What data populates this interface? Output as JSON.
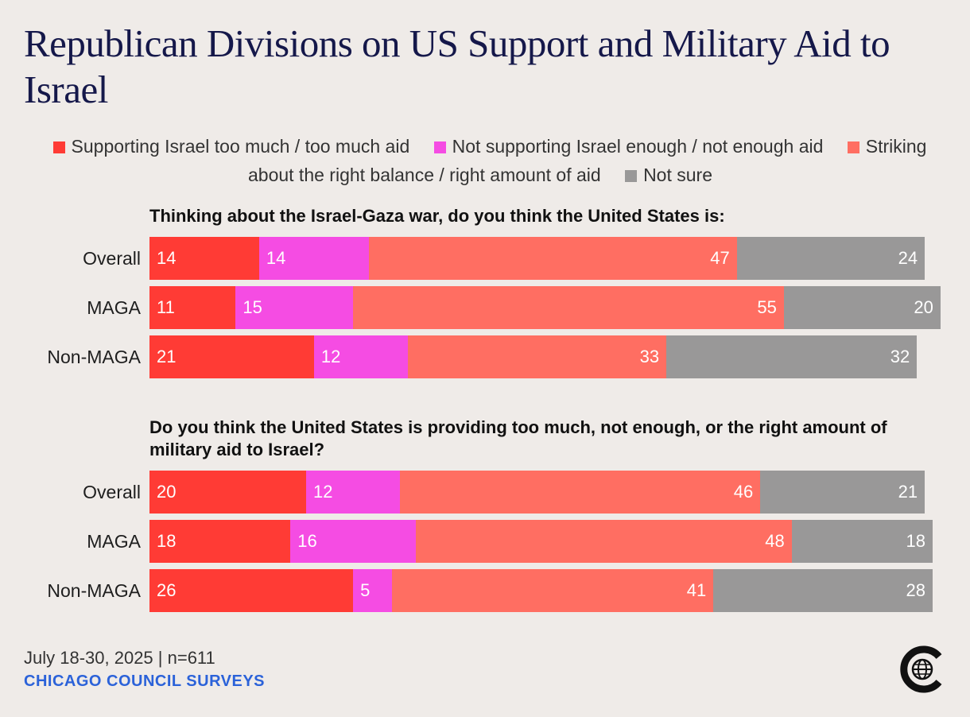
{
  "title": "Republican Divisions on US Support and Military Aid to Israel",
  "legend": [
    {
      "label": "Supporting Israel too much / too much aid",
      "color": "#ff3b35"
    },
    {
      "label": "Not supporting Israel enough / not enough aid",
      "color": "#f54ce3"
    },
    {
      "label": "Striking about the right balance / right amount of aid",
      "color": "#ff6e62"
    },
    {
      "label": "Not sure",
      "color": "#999898"
    }
  ],
  "chart_data": [
    {
      "type": "bar",
      "orientation": "horizontal",
      "stacked": true,
      "title": "Thinking about the Israel-Gaza war, do you think the United States is:",
      "categories": [
        "Overall",
        "MAGA",
        "Non-MAGA"
      ],
      "series": [
        {
          "name": "Supporting Israel too much / too much aid",
          "values": [
            14,
            11,
            21
          ]
        },
        {
          "name": "Not supporting Israel enough / not enough aid",
          "values": [
            14,
            15,
            12
          ]
        },
        {
          "name": "Striking about the right balance / right amount of aid",
          "values": [
            47,
            55,
            33
          ]
        },
        {
          "name": "Not sure",
          "values": [
            24,
            20,
            32
          ]
        }
      ],
      "xlim": [
        0,
        100
      ]
    },
    {
      "type": "bar",
      "orientation": "horizontal",
      "stacked": true,
      "title": "Do you think the United States is providing too much, not enough, or the right amount of military aid to Israel?",
      "categories": [
        "Overall",
        "MAGA",
        "Non-MAGA"
      ],
      "series": [
        {
          "name": "Supporting Israel too much / too much aid",
          "values": [
            20,
            18,
            26
          ]
        },
        {
          "name": "Not supporting Israel enough / not enough aid",
          "values": [
            12,
            16,
            5
          ]
        },
        {
          "name": "Striking about the right balance / right amount of aid",
          "values": [
            46,
            48,
            41
          ]
        },
        {
          "name": "Not sure",
          "values": [
            21,
            18,
            28
          ]
        }
      ],
      "xlim": [
        0,
        100
      ]
    }
  ],
  "footer": {
    "date": "July 18-30, 2025 | n=611",
    "source": "CHICAGO COUNCIL SURVEYS",
    "logo_icon": "chicago-council-globe-logo"
  }
}
